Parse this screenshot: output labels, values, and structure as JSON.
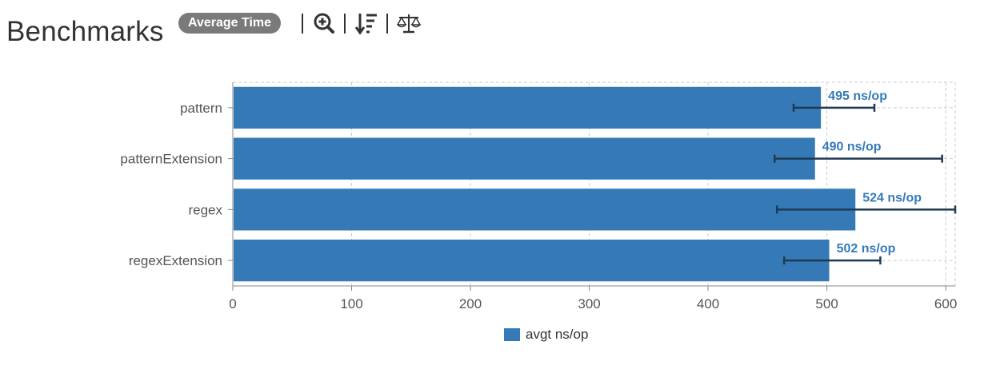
{
  "header": {
    "title": "Benchmarks",
    "mode_badge": "Average Time",
    "tools": [
      {
        "name": "zoom-in-icon"
      },
      {
        "name": "sort-descending-icon"
      },
      {
        "name": "balance-scale-icon"
      }
    ]
  },
  "colors": {
    "bar": "#357ab7",
    "error_bar": "#1f3a52",
    "value_label": "#357ab7",
    "grid": "#cccccc",
    "axis_text": "#555555",
    "badge": "#7a7a7a"
  },
  "chart_data": {
    "type": "bar",
    "orientation": "horizontal",
    "categories": [
      "pattern",
      "patternExtension",
      "regex",
      "regexExtension"
    ],
    "series": [
      {
        "name": "avgt ns/op",
        "values": [
          495,
          490,
          524,
          502
        ],
        "error_low": [
          472,
          456,
          458,
          464
        ],
        "error_high": [
          540,
          597,
          608,
          545
        ],
        "labels": [
          "495 ns/op",
          "490 ns/op",
          "524 ns/op",
          "502 ns/op"
        ]
      }
    ],
    "xlim": [
      0,
      608
    ],
    "xticks": [
      0,
      100,
      200,
      300,
      400,
      500,
      600
    ],
    "xlabel": "",
    "ylabel": "",
    "grid": true,
    "legend_position": "bottom"
  }
}
